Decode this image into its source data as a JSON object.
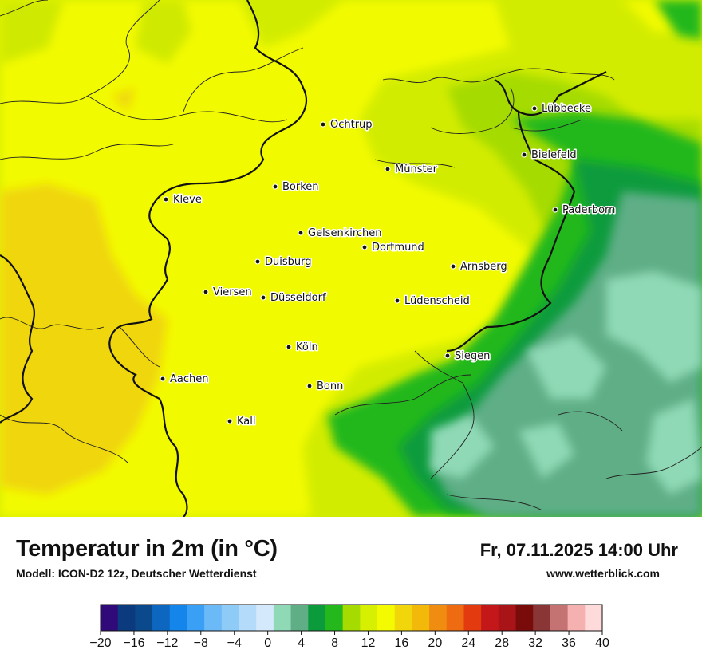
{
  "header": {
    "title": "Temperatur in 2m (in °C)",
    "subtitle": "Modell: ICON-D2 12z, Deutscher Wetterdienst",
    "datetime": "Fr, 07.11.2025 14:00 Uhr",
    "website": "www.wetterblick.com"
  },
  "map": {
    "cities": [
      {
        "name": "Lübbecke"
      },
      {
        "name": "Ochtrup"
      },
      {
        "name": "Bielefeld"
      },
      {
        "name": "Münster"
      },
      {
        "name": "Borken"
      },
      {
        "name": "Kleve"
      },
      {
        "name": "Paderborn"
      },
      {
        "name": "Gelsenkirchen"
      },
      {
        "name": "Dortmund"
      },
      {
        "name": "Duisburg"
      },
      {
        "name": "Arnsberg"
      },
      {
        "name": "Viersen"
      },
      {
        "name": "Düsseldorf"
      },
      {
        "name": "Lüdenscheid"
      },
      {
        "name": "Köln"
      },
      {
        "name": "Siegen"
      },
      {
        "name": "Aachen"
      },
      {
        "name": "Bonn"
      },
      {
        "name": "Kall"
      }
    ]
  },
  "legend": {
    "min": -20,
    "max": 40,
    "step": 2,
    "tick_labels": [
      "−20",
      "−16",
      "−12",
      "−8",
      "−4",
      "0",
      "4",
      "8",
      "12",
      "16",
      "20",
      "24",
      "28",
      "32",
      "36",
      "40"
    ],
    "colors": [
      "#2f0a78",
      "#0b3b7e",
      "#0a4a8c",
      "#0d66c0",
      "#1485ea",
      "#3aa0f5",
      "#6cb9f7",
      "#8ecbf7",
      "#b4dbf9",
      "#d4e9fb",
      "#8fd9b6",
      "#5fae86",
      "#0c9b3c",
      "#24b81c",
      "#a6db00",
      "#d7ef00",
      "#f4fa00",
      "#f0d60a",
      "#f2b90a",
      "#f08c0f",
      "#ee6b11",
      "#e33a0f",
      "#c31719",
      "#a81418",
      "#7a0b0b",
      "#8b3636",
      "#c47272",
      "#f5b0b0",
      "#ffdada"
    ]
  }
}
